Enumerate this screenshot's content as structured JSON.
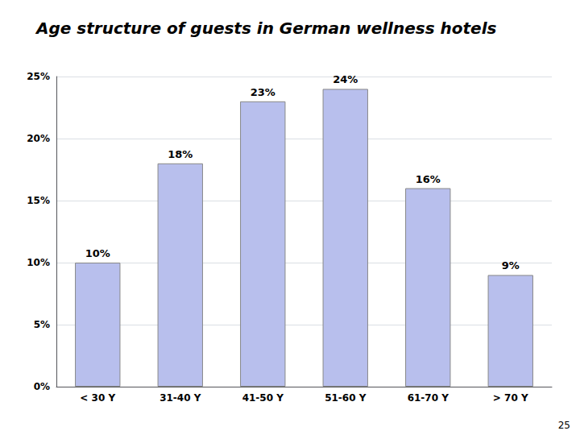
{
  "chart_data": {
    "type": "bar",
    "title": "Age structure of guests in German wellness hotels",
    "categories": [
      "< 30 Y",
      "31-40 Y",
      "41-50 Y",
      "51-60 Y",
      "61-70 Y",
      "> 70 Y"
    ],
    "values": [
      10,
      18,
      23,
      24,
      16,
      9
    ],
    "value_labels": [
      "10%",
      "18%",
      "23%",
      "24%",
      "16%",
      "9%"
    ],
    "data_labels": true,
    "color": "#b8bfed",
    "ylim": [
      0,
      25
    ],
    "yticks": [
      {
        "value": 0,
        "label": "0%"
      },
      {
        "value": 5,
        "label": "5%"
      },
      {
        "value": 10,
        "label": "10%"
      },
      {
        "value": 15,
        "label": "15%"
      },
      {
        "value": 20,
        "label": "20%"
      },
      {
        "value": 25,
        "label": "25%"
      }
    ],
    "grid": true,
    "annotations": [
      "25"
    ]
  }
}
